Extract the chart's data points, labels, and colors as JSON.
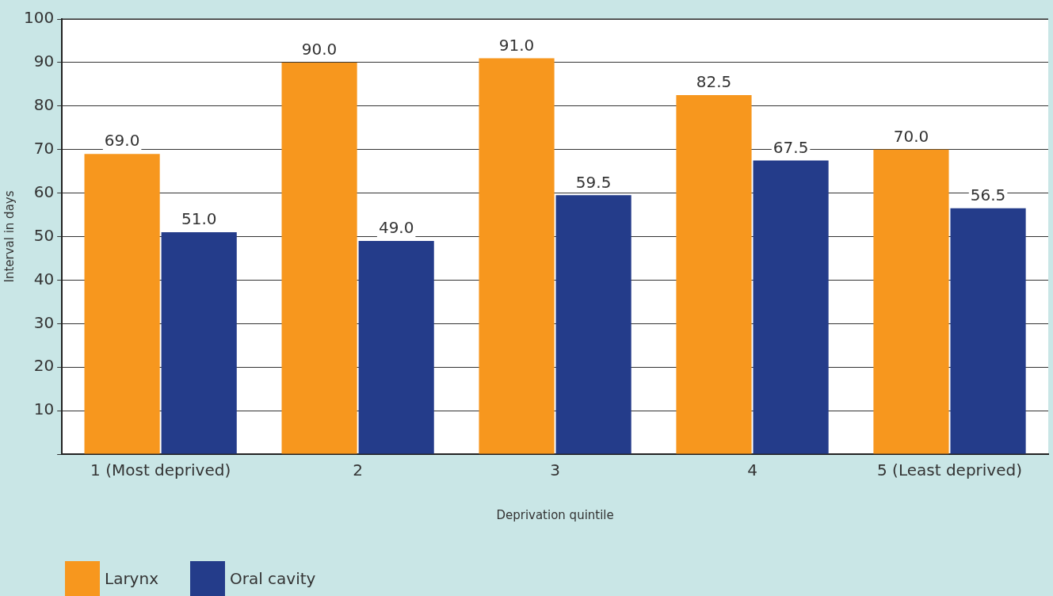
{
  "chart_data": {
    "type": "bar",
    "xlabel": "Deprivation quintile",
    "ylabel": "Interval in days",
    "categories": [
      "1 (Most deprived)",
      "2",
      "3",
      "4",
      "5 (Least deprived)"
    ],
    "series": [
      {
        "name": "Larynx",
        "color": "#f7971e",
        "values": [
          69.0,
          90.0,
          91.0,
          82.5,
          70.0
        ],
        "value_labels": [
          "69.0",
          "90.0",
          "91.0",
          "82.5",
          "70.0"
        ]
      },
      {
        "name": "Oral cavity",
        "color": "#243c8a",
        "values": [
          51.0,
          49.0,
          59.5,
          67.5,
          56.5
        ],
        "value_labels": [
          "51.0",
          "49.0",
          "59.5",
          "67.5",
          "56.5"
        ]
      }
    ],
    "ylim": [
      0,
      100
    ],
    "yticks": [
      {
        "value": 0,
        "label": null
      },
      10,
      20,
      30,
      40,
      50,
      60,
      70,
      80,
      90,
      100
    ],
    "grid": "y",
    "legend": "bottom left"
  }
}
